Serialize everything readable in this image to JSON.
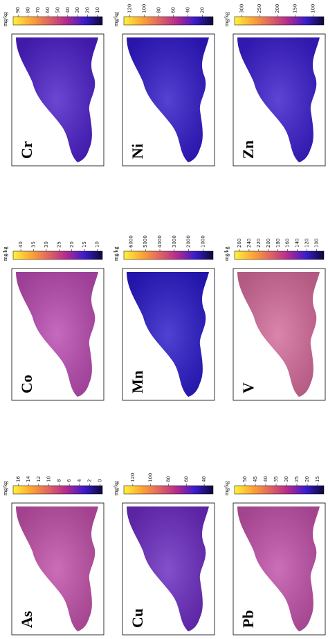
{
  "unit": "mg/kg",
  "panels": [
    {
      "label": "As",
      "clim": [
        -0.5,
        17
      ],
      "ticks": [
        0,
        2,
        4,
        6,
        8,
        10,
        12,
        14,
        16
      ],
      "color": "#c04fa8"
    },
    {
      "label": "Cu",
      "clim": [
        30,
        130
      ],
      "ticks": [
        40,
        60,
        80,
        100,
        120
      ],
      "color": "#6a2ac0"
    },
    {
      "label": "Pb",
      "clim": [
        12,
        55
      ],
      "ticks": [
        15,
        20,
        25,
        30,
        35,
        40,
        45,
        50
      ],
      "color": "#c050a8"
    },
    {
      "label": "Co",
      "clim": [
        8,
        43
      ],
      "ticks": [
        10,
        15,
        20,
        25,
        30,
        35,
        40
      ],
      "color": "#b84ab0"
    },
    {
      "label": "Mn",
      "clim": [
        300,
        6500
      ],
      "ticks": [
        1000,
        2000,
        3000,
        4000,
        5000,
        6000
      ],
      "color": "#2a19c8"
    },
    {
      "label": "V",
      "clim": [
        85,
        270
      ],
      "ticks": [
        100,
        120,
        140,
        160,
        180,
        200,
        220,
        240,
        260
      ],
      "color": "#d36a9a"
    },
    {
      "label": "Cr",
      "clim": [
        5,
        95
      ],
      "ticks": [
        10,
        20,
        30,
        40,
        50,
        60,
        70,
        80,
        90
      ],
      "color": "#4b1fc8"
    },
    {
      "label": "Ni",
      "clim": [
        5,
        128
      ],
      "ticks": [
        20,
        40,
        60,
        80,
        100,
        120
      ],
      "color": "#3019c8"
    },
    {
      "label": "Zn",
      "clim": [
        70,
        320
      ],
      "ticks": [
        100,
        150,
        200,
        250,
        300
      ],
      "color": "#3a1ccc"
    }
  ]
}
